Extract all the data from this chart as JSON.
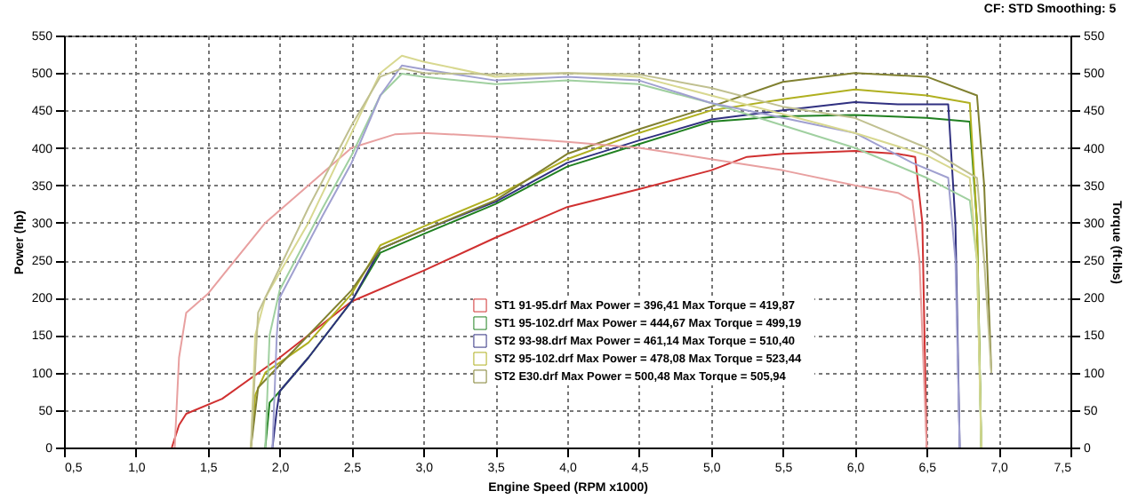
{
  "chart_data": {
    "type": "line",
    "xlabel": "Engine Speed (RPM x1000)",
    "ylabel": "Power (hp)",
    "y2label": "Torque (ft-lbs)",
    "annotations": [
      "CF: STD  Smoothing: 5"
    ],
    "xlim": [
      0.5,
      7.5
    ],
    "xticks": [
      {
        "value": 0.5,
        "label": "0,5"
      },
      {
        "value": 1,
        "label": "1,0"
      },
      {
        "value": 1.5,
        "label": "1,5"
      },
      {
        "value": 2,
        "label": "2,0"
      },
      {
        "value": 2.5,
        "label": "2,5"
      },
      {
        "value": 3,
        "label": "3,0"
      },
      {
        "value": 3.5,
        "label": "3,5"
      },
      {
        "value": 4,
        "label": "4,0"
      },
      {
        "value": 4.5,
        "label": "4,5"
      },
      {
        "value": 5,
        "label": "5,0"
      },
      {
        "value": 5.5,
        "label": "5,5"
      },
      {
        "value": 6,
        "label": "6,0"
      },
      {
        "value": 6.5,
        "label": "6,5"
      },
      {
        "value": 7,
        "label": "7,0"
      },
      {
        "value": 7.5,
        "label": "7,5"
      }
    ],
    "ylim": [
      0,
      550
    ],
    "yticks": [
      0,
      50,
      100,
      150,
      200,
      250,
      300,
      350,
      400,
      450,
      500,
      550
    ],
    "y2lim": [
      0,
      550
    ],
    "y2ticks": [
      0,
      50,
      100,
      150,
      200,
      250,
      300,
      350,
      400,
      450,
      500,
      550
    ],
    "grid": true,
    "legend": "bottom",
    "series": [
      {
        "name": "ST1 91-95.drf Max Power = 396,41     Max Torque = 419,87",
        "color": "#d03030",
        "x": [
          1.25,
          1.3,
          1.35,
          1.6,
          2.0,
          2.5,
          3.0,
          3.5,
          4.0,
          4.5,
          5.0,
          5.25,
          5.5,
          6.0,
          6.3,
          6.42,
          6.47,
          6.5
        ],
        "values": [
          0,
          30,
          45,
          65,
          120,
          195,
          236,
          280,
          321,
          345,
          370,
          388,
          392,
          396,
          392,
          388,
          300,
          0
        ]
      },
      {
        "name": "ST1 95-102.drf Max Power = 444,67     Max Torque = 499,19",
        "color": "#208020",
        "x": [
          1.9,
          1.93,
          2.0,
          2.2,
          2.5,
          2.7,
          3.0,
          3.5,
          4.0,
          4.5,
          5.0,
          5.5,
          6.0,
          6.5,
          6.8,
          6.85,
          6.88
        ],
        "values": [
          0,
          60,
          75,
          120,
          195,
          260,
          285,
          325,
          375,
          405,
          435,
          442,
          444,
          440,
          435,
          300,
          0
        ]
      },
      {
        "name": "ST2 93-98.drf Max Power = 461,14     Max Torque = 510,40",
        "color": "#303080",
        "x": [
          1.95,
          1.98,
          2.0,
          2.2,
          2.5,
          2.7,
          3.0,
          3.5,
          4.0,
          4.5,
          5.0,
          5.5,
          6.0,
          6.3,
          6.65,
          6.7,
          6.73
        ],
        "values": [
          0,
          50,
          75,
          120,
          195,
          265,
          290,
          328,
          380,
          410,
          438,
          450,
          461,
          458,
          458,
          300,
          0
        ]
      },
      {
        "name": "ST2 95-102.drf Max Power = 478,08     Max Torque = 523,44",
        "color": "#b0b020",
        "x": [
          1.8,
          1.83,
          1.9,
          2.2,
          2.5,
          2.7,
          3.0,
          3.5,
          4.0,
          4.5,
          5.0,
          5.5,
          6.0,
          6.5,
          6.8,
          6.85,
          6.88
        ],
        "values": [
          0,
          70,
          100,
          140,
          205,
          270,
          295,
          335,
          385,
          420,
          450,
          465,
          478,
          470,
          460,
          300,
          0
        ]
      },
      {
        "name": "ST2 E30.drf Max Power = 500,48     Max Torque = 505,94",
        "color": "#808030",
        "x": [
          1.8,
          1.85,
          2.0,
          2.2,
          2.5,
          2.7,
          3.0,
          3.5,
          4.0,
          4.5,
          5.0,
          5.5,
          6.0,
          6.5,
          6.85,
          6.9,
          6.95
        ],
        "values": [
          0,
          80,
          110,
          150,
          210,
          265,
          290,
          330,
          392,
          425,
          455,
          488,
          500,
          495,
          470,
          350,
          100
        ]
      },
      {
        "axis": "y2",
        "color": "#e8a0a0",
        "x": [
          1.27,
          1.3,
          1.35,
          1.5,
          1.9,
          2.2,
          2.5,
          2.8,
          3.0,
          3.5,
          4.0,
          4.5,
          5.0,
          5.5,
          6.0,
          6.3,
          6.4,
          6.45,
          6.5
        ],
        "values": [
          0,
          120,
          180,
          205,
          300,
          350,
          400,
          418,
          420,
          415,
          408,
          400,
          385,
          370,
          350,
          340,
          330,
          250,
          0
        ]
      },
      {
        "axis": "y2",
        "color": "#a0d0a0",
        "x": [
          1.9,
          1.93,
          2.0,
          2.3,
          2.5,
          2.7,
          2.85,
          3.0,
          3.5,
          4.0,
          4.5,
          5.0,
          5.5,
          6.0,
          6.5,
          6.8,
          6.85,
          6.88
        ],
        "values": [
          0,
          150,
          210,
          320,
          390,
          470,
          499,
          495,
          485,
          490,
          485,
          460,
          430,
          400,
          360,
          330,
          250,
          0
        ]
      },
      {
        "axis": "y2",
        "color": "#a0a0d0",
        "x": [
          1.95,
          1.98,
          2.0,
          2.3,
          2.5,
          2.7,
          2.85,
          3.0,
          3.5,
          4.0,
          4.5,
          5.0,
          5.5,
          6.0,
          6.4,
          6.65,
          6.7,
          6.73
        ],
        "values": [
          0,
          150,
          200,
          310,
          380,
          470,
          510,
          505,
          490,
          495,
          490,
          460,
          440,
          420,
          380,
          360,
          250,
          0
        ]
      },
      {
        "axis": "y2",
        "color": "#d8d890",
        "x": [
          1.8,
          1.83,
          1.9,
          2.2,
          2.5,
          2.7,
          2.85,
          3.0,
          3.5,
          4.0,
          4.5,
          5.0,
          5.5,
          6.0,
          6.5,
          6.8,
          6.85,
          6.88
        ],
        "values": [
          0,
          150,
          200,
          300,
          420,
          500,
          523,
          515,
          495,
          500,
          495,
          470,
          445,
          420,
          390,
          360,
          250,
          0
        ]
      },
      {
        "axis": "y2",
        "color": "#c0c090",
        "x": [
          1.8,
          1.85,
          2.0,
          2.2,
          2.5,
          2.7,
          2.85,
          3.0,
          3.5,
          4.0,
          4.5,
          5.0,
          5.5,
          6.0,
          6.5,
          6.85,
          6.9,
          6.95
        ],
        "values": [
          0,
          180,
          240,
          320,
          430,
          495,
          506,
          500,
          498,
          500,
          498,
          480,
          455,
          440,
          400,
          360,
          250,
          100
        ]
      }
    ]
  }
}
